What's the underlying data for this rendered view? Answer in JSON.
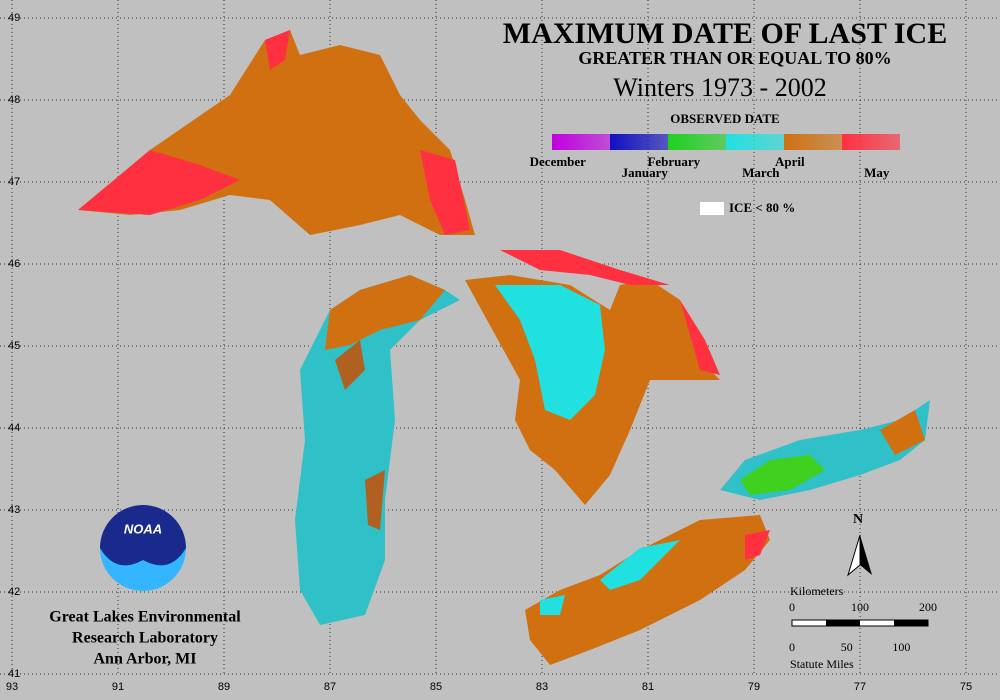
{
  "map": {
    "title": "MAXIMUM DATE OF LAST ICE",
    "subtitle": "GREATER THAN OR EQUAL TO 80%",
    "period": "Winters 1973 - 2002",
    "legend": {
      "title": "OBSERVED DATE",
      "items": [
        {
          "label": "December",
          "color": "#c000e0"
        },
        {
          "label": "January",
          "color": "#1010c0"
        },
        {
          "label": "February",
          "color": "#20d020"
        },
        {
          "label": "March",
          "color": "#20e0e0"
        },
        {
          "label": "April",
          "color": "#d07010"
        },
        {
          "label": "May",
          "color": "#ff3040"
        }
      ],
      "no_ice": "ICE < 80 %"
    },
    "lat_ticks": [
      49,
      48,
      47,
      46,
      45,
      44,
      43,
      42,
      41
    ],
    "lon_ticks": [
      93,
      91,
      89,
      87,
      85,
      83,
      81,
      79,
      77,
      75
    ],
    "north": "N",
    "scale": {
      "km_title": "Kilometers",
      "km": [
        0,
        100,
        200
      ],
      "mi": [
        0,
        50,
        100
      ],
      "mi_title": "Statute Miles"
    },
    "logo": "NOAA",
    "credit": [
      "Great Lakes Environmental",
      "Research Laboratory",
      "Ann Arbor, MI"
    ]
  }
}
